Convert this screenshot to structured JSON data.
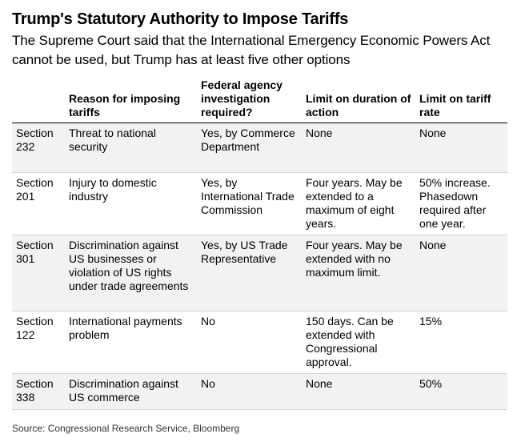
{
  "title": "Trump's Statutory Authority to Impose Tariffs",
  "subtitle": "The Supreme Court said that the International Emergency Economic Powers Act cannot be used, but Trump has at least five other options",
  "table": {
    "headers": [
      "",
      "Reason for imposing tariffs",
      "Federal agency investigation required?",
      "Limit on duration of action",
      "Limit on tariff rate"
    ],
    "rows": [
      [
        "Section 232",
        "Threat to national security",
        "Yes, by Commerce Department",
        "None",
        "None"
      ],
      [
        "Section 201",
        "Injury to domestic industry",
        "Yes, by International Trade Commission",
        "Four years. May be extended to a maximum of eight years.",
        "50% increase. Phasedown required after one year."
      ],
      [
        "Section 301",
        "Discrimination against US businesses or violation of US rights under trade agreements",
        "Yes, by US Trade Representative",
        "Four years. May be extended with no maximum limit.",
        "None"
      ],
      [
        "Section 122",
        "International payments problem",
        "No",
        "150 days. Can be extended with Congressional approval.",
        "15%"
      ],
      [
        "Section 338",
        "Discrimination against US commerce",
        "No",
        "None",
        "50%"
      ]
    ]
  },
  "source": "Source: Congressional Research Service, Bloomberg"
}
